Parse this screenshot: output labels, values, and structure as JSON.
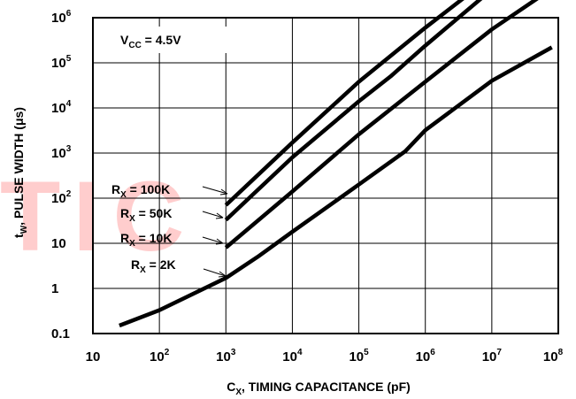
{
  "chart_data": {
    "type": "line",
    "log_x": true,
    "log_y": true,
    "xlabel_main": "C",
    "xlabel_sub": "X",
    "xlabel_rest": ", TIMING CAPACITANCE (pF)",
    "ylabel_main": "t",
    "ylabel_sub": "W",
    "ylabel_rest": ", PULSE WIDTH (μs)",
    "xlim": [
      10,
      100000000
    ],
    "ylim": [
      0.1,
      1000000
    ],
    "grid": true,
    "x_ticks": [
      {
        "value": 10,
        "base": "10",
        "exp": ""
      },
      {
        "value": 100,
        "base": "10",
        "exp": "2"
      },
      {
        "value": 1000,
        "base": "10",
        "exp": "3"
      },
      {
        "value": 10000,
        "base": "10",
        "exp": "4"
      },
      {
        "value": 100000,
        "base": "10",
        "exp": "5"
      },
      {
        "value": 1000000,
        "base": "10",
        "exp": "6"
      },
      {
        "value": 10000000,
        "base": "10",
        "exp": "7"
      },
      {
        "value": 100000000,
        "base": "10",
        "exp": "8"
      }
    ],
    "y_ticks": [
      {
        "value": 0.1,
        "base": "0.1",
        "exp": ""
      },
      {
        "value": 1,
        "base": "1",
        "exp": ""
      },
      {
        "value": 10,
        "base": "10",
        "exp": ""
      },
      {
        "value": 100,
        "base": "10",
        "exp": "2"
      },
      {
        "value": 1000,
        "base": "10",
        "exp": "3"
      },
      {
        "value": 10000,
        "base": "10",
        "exp": "4"
      },
      {
        "value": 100000,
        "base": "10",
        "exp": "5"
      },
      {
        "value": 1000000,
        "base": "10",
        "exp": "6"
      }
    ],
    "annotation": {
      "main": "V",
      "sub": "CC",
      "rest": " = 4.5V"
    },
    "series": [
      {
        "label_main": "R",
        "label_sub": "X",
        "label_rest": " = 100K",
        "points": [
          [
            1000,
            70
          ],
          [
            10000,
            1700
          ],
          [
            100000,
            38000
          ],
          [
            1000000,
            600000
          ],
          [
            7000000,
            5500000
          ]
        ]
      },
      {
        "label_main": "R",
        "label_sub": "X",
        "label_rest": " = 50K",
        "points": [
          [
            1000,
            33
          ],
          [
            10000,
            800
          ],
          [
            100000,
            14000
          ],
          [
            300000,
            50000
          ],
          [
            1000000,
            240000
          ],
          [
            12000000,
            5300000
          ]
        ]
      },
      {
        "label_main": "R",
        "label_sub": "X",
        "label_rest": " = 10K",
        "points": [
          [
            1000,
            8
          ],
          [
            10000,
            140
          ],
          [
            100000,
            2600
          ],
          [
            1000000,
            38000
          ],
          [
            10000000,
            550000
          ],
          [
            100000000,
            5500000
          ]
        ]
      },
      {
        "label_main": "R",
        "label_sub": "X",
        "label_rest": " = 2K",
        "points": [
          [
            25,
            0.15
          ],
          [
            100,
            0.33
          ],
          [
            1000,
            1.7
          ],
          [
            3000,
            5
          ],
          [
            10000,
            18
          ],
          [
            100000,
            200
          ],
          [
            500000,
            1100
          ],
          [
            1000000,
            3200
          ],
          [
            10000000,
            40000
          ],
          [
            80000000,
            220000
          ]
        ]
      }
    ],
    "watermark": "TIC"
  }
}
